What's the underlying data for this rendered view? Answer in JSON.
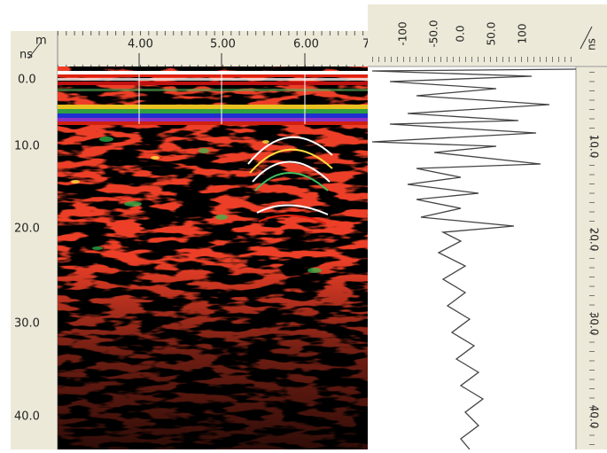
{
  "left_panel": {
    "corner_units": [
      "ns",
      "m"
    ],
    "x_ticks": [
      "4.00",
      "5.00",
      "6.00",
      "7"
    ],
    "y_ticks": [
      "0.0",
      "10.0",
      "20.0",
      "30.0",
      "40.0"
    ]
  },
  "right_panel": {
    "corner_unit": "ns",
    "amplitude_ticks": [
      "-100",
      "-50.0",
      "0.0",
      "50.0",
      "100"
    ],
    "time_ticks": [
      "10.0",
      "20.0",
      "30.0",
      "40.0"
    ]
  }
}
